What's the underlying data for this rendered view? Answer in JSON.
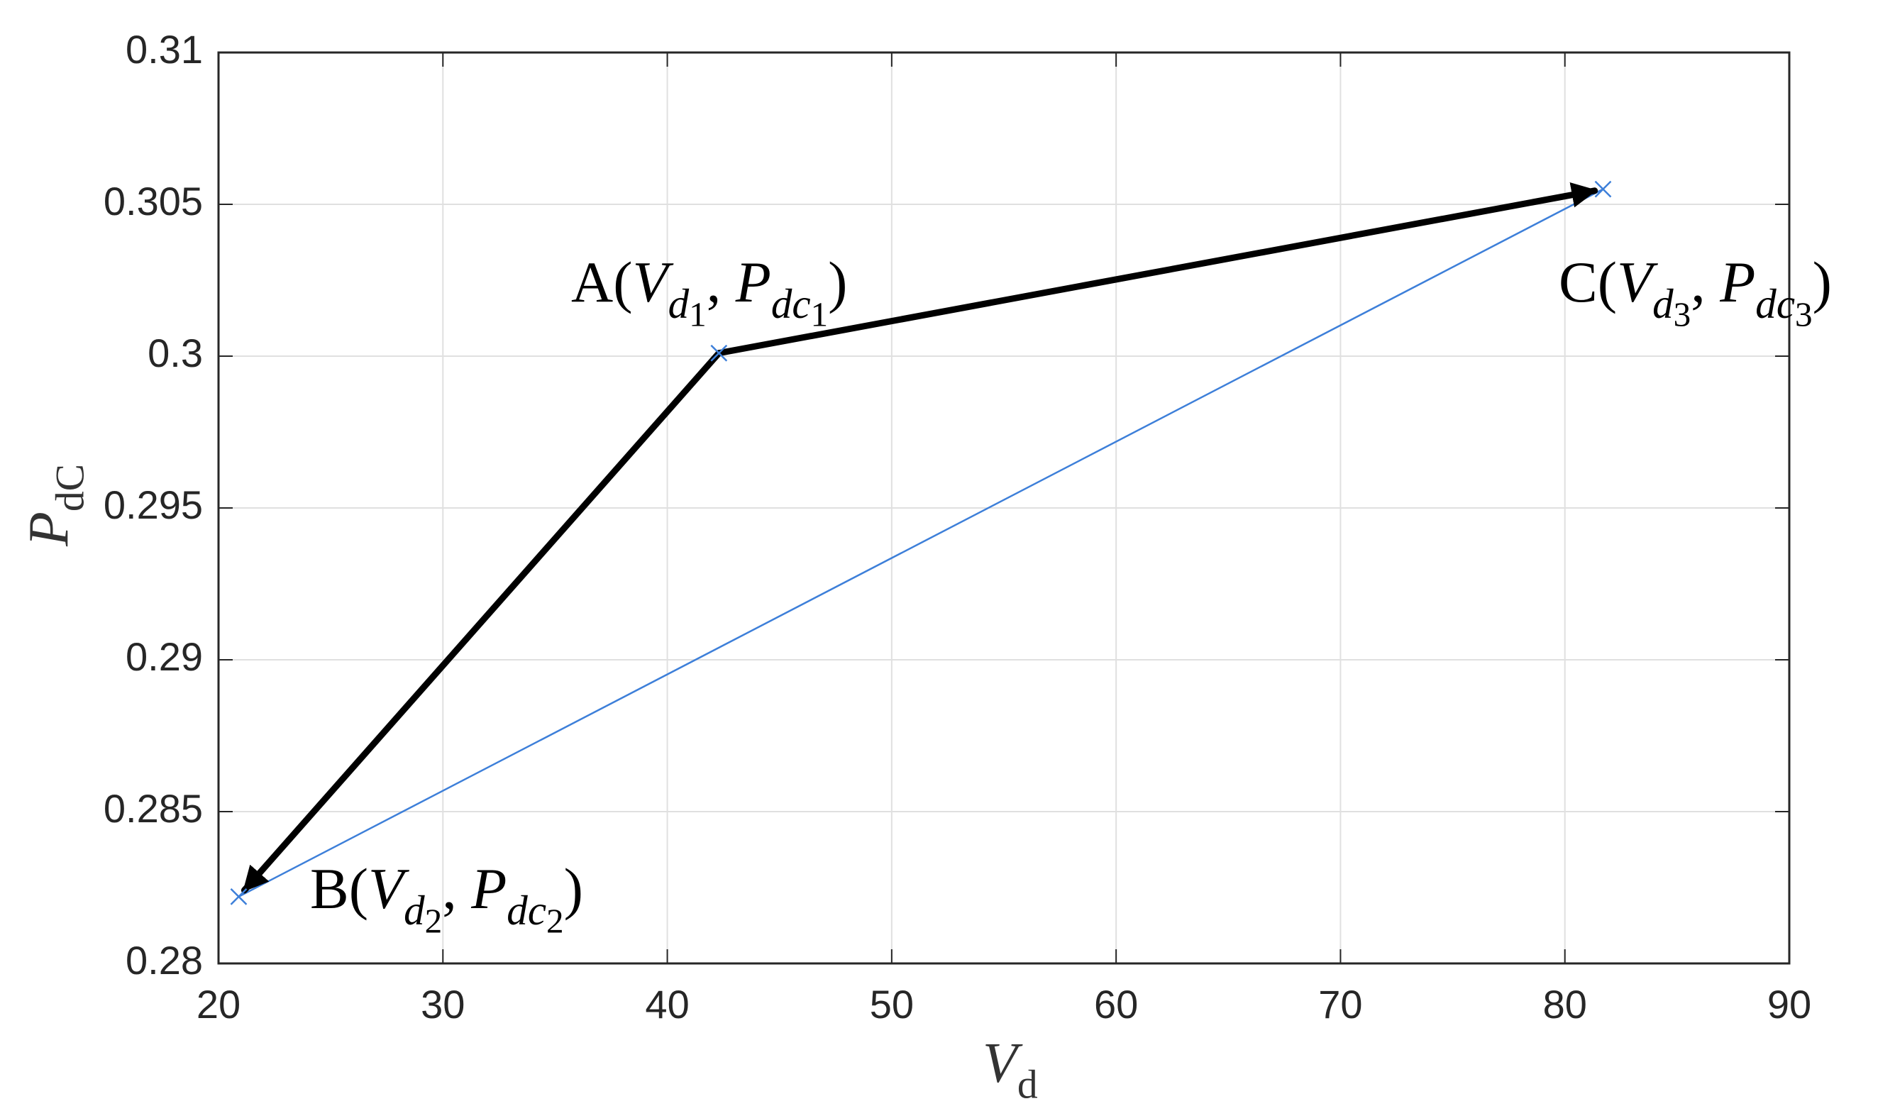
{
  "chart_data": {
    "type": "scatter",
    "x_label": [
      {
        "text": "V",
        "style": "italic",
        "shift": "base"
      },
      {
        "text": "d",
        "style": "normal",
        "shift": "sub"
      }
    ],
    "y_label": [
      {
        "text": "P",
        "style": "italic",
        "shift": "base"
      },
      {
        "text": "dC",
        "style": "normal",
        "shift": "sub"
      }
    ],
    "x": [
      42.3,
      20.9,
      81.7
    ],
    "y": [
      0.3001,
      0.2822,
      0.3055
    ],
    "color": "#3d7fd9",
    "line_color": "#3d7fd9",
    "arrow_color": "#000000",
    "point_labels": [
      [
        {
          "text": "A(",
          "style": "normal",
          "shift": "base"
        },
        {
          "text": "V",
          "style": "italic",
          "shift": "base"
        },
        {
          "text": "d",
          "style": "italic",
          "shift": "sub"
        },
        {
          "text": "1",
          "style": "normal",
          "shift": "sub2"
        },
        {
          "text": ", ",
          "style": "normal",
          "shift": "base"
        },
        {
          "text": "P",
          "style": "italic",
          "shift": "base"
        },
        {
          "text": "dc",
          "style": "italic",
          "shift": "sub"
        },
        {
          "text": "1",
          "style": "normal",
          "shift": "sub2"
        },
        {
          "text": ")",
          "style": "normal",
          "shift": "base"
        }
      ],
      [
        {
          "text": "B(",
          "style": "normal",
          "shift": "base"
        },
        {
          "text": "V",
          "style": "italic",
          "shift": "base"
        },
        {
          "text": "d",
          "style": "italic",
          "shift": "sub"
        },
        {
          "text": "2",
          "style": "normal",
          "shift": "sub2"
        },
        {
          "text": ", ",
          "style": "normal",
          "shift": "base"
        },
        {
          "text": "P",
          "style": "italic",
          "shift": "base"
        },
        {
          "text": "dc",
          "style": "italic",
          "shift": "sub"
        },
        {
          "text": "2",
          "style": "normal",
          "shift": "sub2"
        },
        {
          "text": ")",
          "style": "normal",
          "shift": "base"
        }
      ],
      [
        {
          "text": "C(",
          "style": "normal",
          "shift": "base"
        },
        {
          "text": "V",
          "style": "italic",
          "shift": "base"
        },
        {
          "text": "d",
          "style": "italic",
          "shift": "sub"
        },
        {
          "text": "3",
          "style": "normal",
          "shift": "sub2"
        },
        {
          "text": ", ",
          "style": "normal",
          "shift": "base"
        },
        {
          "text": "P",
          "style": "italic",
          "shift": "base"
        },
        {
          "text": "dc",
          "style": "italic",
          "shift": "sub"
        },
        {
          "text": "3",
          "style": "normal",
          "shift": "sub2"
        },
        {
          "text": ")",
          "style": "normal",
          "shift": "base"
        }
      ]
    ],
    "xlim": [
      20,
      90
    ],
    "xticks": [
      20,
      30,
      40,
      50,
      60,
      70,
      80,
      90
    ],
    "ylim": [
      0.28,
      0.31
    ],
    "yticks": [
      0.28,
      0.285,
      0.29,
      0.295,
      0.3,
      0.305,
      0.31
    ],
    "grid": true
  }
}
